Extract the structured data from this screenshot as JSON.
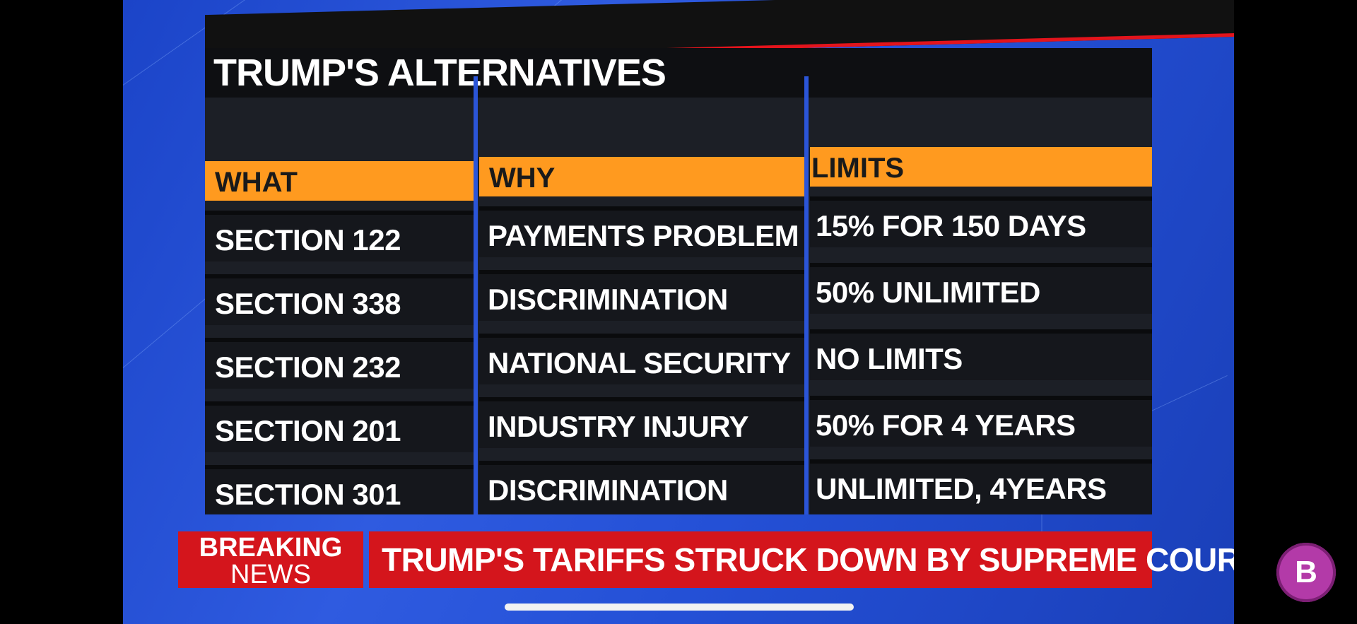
{
  "title": "TRUMP'S ALTERNATIVES",
  "columns": [
    {
      "header": "WHAT",
      "rows": [
        "SECTION 122",
        "SECTION 338",
        "SECTION 232",
        "SECTION 201",
        "SECTION 301"
      ]
    },
    {
      "header": "WHY",
      "rows": [
        "PAYMENTS PROBLEM",
        "DISCRIMINATION",
        "NATIONAL SECURITY",
        "INDUSTRY INJURY",
        "DISCRIMINATION"
      ]
    },
    {
      "header": "LIMITS",
      "rows": [
        "15% FOR 150 DAYS",
        "50% UNLIMITED",
        "NO LIMITS",
        "50% FOR 4 YEARS",
        "UNLIMITED, 4YEARS"
      ]
    }
  ],
  "ticker": {
    "label_line1": "BREAKING",
    "label_line2": "NEWS",
    "headline": "TRUMP'S TARIFFS STRUCK DOWN BY SUPREME COURT"
  },
  "logo": {
    "letter": "B"
  },
  "colors": {
    "header_orange": "#ff9a1f",
    "breaking_red": "#d4151c",
    "background_blue": "#2450d6"
  }
}
